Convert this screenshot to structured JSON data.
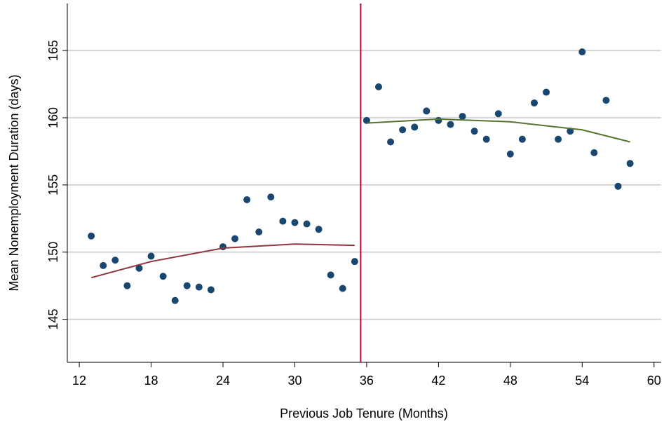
{
  "chart_data": {
    "type": "scatter",
    "xlabel": "Previous Job Tenure (Months)",
    "ylabel": "Mean Nonemployment Duration (days)",
    "xlim": [
      11,
      60.6
    ],
    "ylim": [
      141.8,
      168.5
    ],
    "xticks": [
      12,
      18,
      24,
      30,
      36,
      42,
      48,
      54,
      60
    ],
    "yticks": [
      145,
      150,
      155,
      160,
      165
    ],
    "grid": true,
    "vline": {
      "value": 35.5,
      "color": "#c10534"
    },
    "series": [
      {
        "type": "scatter",
        "color": "#1a476f",
        "x": [
          13,
          14,
          15,
          16,
          17,
          18,
          19,
          20,
          21,
          22,
          23,
          24,
          25,
          26,
          27,
          28,
          29,
          30,
          31,
          32,
          33,
          34,
          35,
          36,
          37,
          38,
          39,
          40,
          41,
          42,
          43,
          44,
          45,
          46,
          47,
          48,
          49,
          50,
          51,
          52,
          53,
          54,
          55,
          56,
          57,
          58
        ],
        "values": [
          151.2,
          149.0,
          149.4,
          147.5,
          148.8,
          149.7,
          148.2,
          146.4,
          147.5,
          147.4,
          147.2,
          150.4,
          151.0,
          153.9,
          151.5,
          154.1,
          152.3,
          152.2,
          152.1,
          151.7,
          148.3,
          147.3,
          149.3,
          159.8,
          162.3,
          158.2,
          159.1,
          159.3,
          160.5,
          159.8,
          159.5,
          160.1,
          159.0,
          158.4,
          160.3,
          157.3,
          158.4,
          161.1,
          161.9,
          158.4,
          159.0,
          164.9,
          157.4,
          161.3,
          154.9,
          156.6
        ]
      },
      {
        "type": "line",
        "color": "#90353b",
        "x": [
          13,
          18,
          24,
          30,
          35
        ],
        "values": [
          148.1,
          149.3,
          150.3,
          150.6,
          150.5
        ]
      },
      {
        "type": "line",
        "color": "#55752f",
        "x": [
          36,
          42,
          48,
          54,
          58
        ],
        "values": [
          159.6,
          159.9,
          159.7,
          159.1,
          158.2
        ]
      }
    ]
  }
}
